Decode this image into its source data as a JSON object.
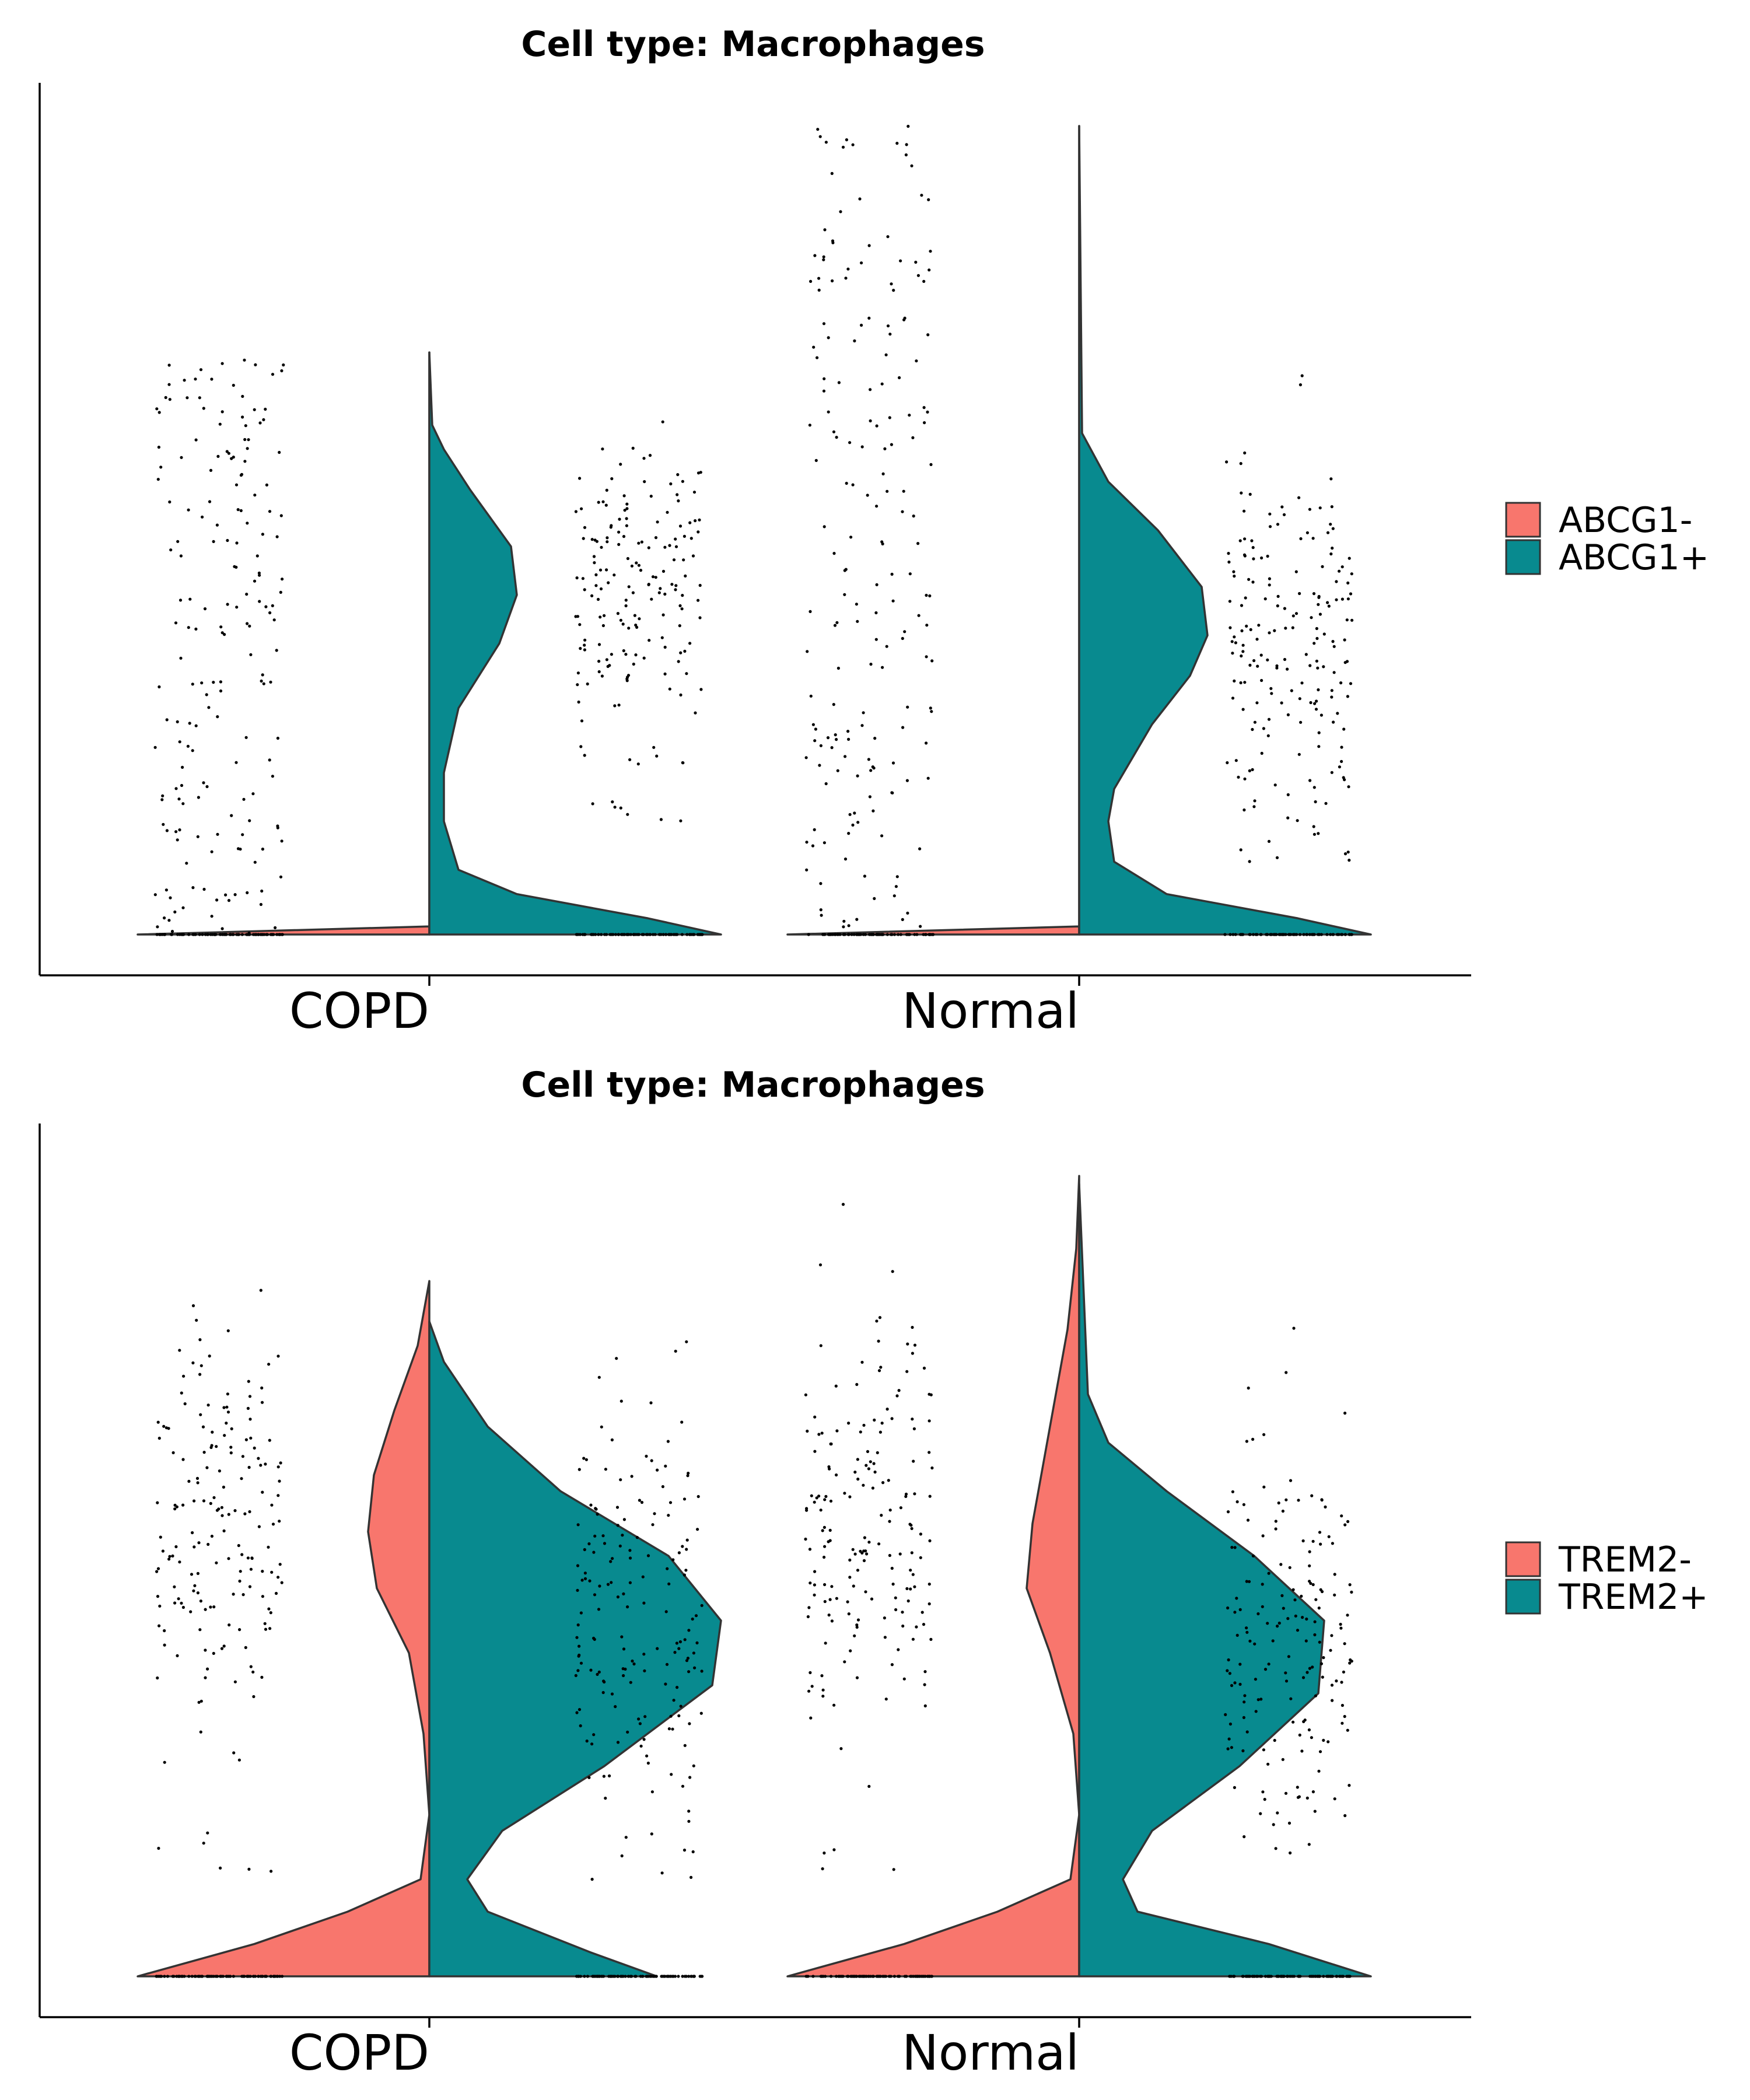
{
  "chart_data": [
    {
      "type": "violin",
      "title": "Cell type: Macrophages",
      "xlabel": "",
      "ylabel": "",
      "categories": [
        "COPD",
        "Normal"
      ],
      "legend": {
        "placement": "right",
        "entries": [
          {
            "label": "ABCG1-",
            "color": "#F8766D"
          },
          {
            "label": "ABCG1+",
            "color": "#088A8F"
          }
        ]
      },
      "ylim": [
        -0.05,
        1.05
      ],
      "grid": false,
      "series": [
        {
          "name": "ABCG1-",
          "color": "#F8766D",
          "groups": [
            {
              "category": "COPD",
              "ymax": 0.72,
              "density": [
                [
                  0,
                  1.0
                ],
                [
                  0.01,
                  0.0
                ]
              ],
              "points_visible_top": 0.73
            },
            {
              "category": "Normal",
              "ymax": 1.0,
              "density": [
                [
                  0,
                  1.0
                ],
                [
                  0.01,
                  0.0
                ]
              ],
              "points_visible_top": 1.0
            }
          ]
        },
        {
          "name": "ABCG1+",
          "color": "#088A8F",
          "groups": [
            {
              "category": "COPD",
              "ymax": 0.72,
              "density": [
                [
                  0,
                  1.0
                ],
                [
                  0.02,
                  0.75
                ],
                [
                  0.05,
                  0.3
                ],
                [
                  0.08,
                  0.1
                ],
                [
                  0.14,
                  0.05
                ],
                [
                  0.2,
                  0.05
                ],
                [
                  0.28,
                  0.1
                ],
                [
                  0.36,
                  0.24
                ],
                [
                  0.42,
                  0.3
                ],
                [
                  0.48,
                  0.28
                ],
                [
                  0.55,
                  0.14
                ],
                [
                  0.6,
                  0.05
                ],
                [
                  0.63,
                  0.01
                ],
                [
                  0.72,
                  0.0
                ]
              ]
            },
            {
              "category": "Normal",
              "ymax": 1.0,
              "density": [
                [
                  0,
                  1.0
                ],
                [
                  0.02,
                  0.75
                ],
                [
                  0.05,
                  0.3
                ],
                [
                  0.09,
                  0.12
                ],
                [
                  0.14,
                  0.1
                ],
                [
                  0.18,
                  0.12
                ],
                [
                  0.26,
                  0.25
                ],
                [
                  0.32,
                  0.38
                ],
                [
                  0.37,
                  0.44
                ],
                [
                  0.43,
                  0.42
                ],
                [
                  0.5,
                  0.27
                ],
                [
                  0.56,
                  0.1
                ],
                [
                  0.62,
                  0.01
                ],
                [
                  1.0,
                  0.0
                ]
              ]
            }
          ]
        }
      ]
    },
    {
      "type": "violin",
      "title": "Cell type: Macrophages",
      "xlabel": "",
      "ylabel": "",
      "categories": [
        "COPD",
        "Normal"
      ],
      "legend": {
        "placement": "right",
        "entries": [
          {
            "label": "TREM2-",
            "color": "#F8766D"
          },
          {
            "label": "TREM2+",
            "color": "#088A8F"
          }
        ]
      },
      "ylim": [
        -0.05,
        1.05
      ],
      "grid": false,
      "series": [
        {
          "name": "TREM2-",
          "color": "#F8766D",
          "groups": [
            {
              "category": "COPD",
              "ymax": 0.86,
              "density": [
                [
                  0,
                  1.0
                ],
                [
                  0.04,
                  0.6
                ],
                [
                  0.08,
                  0.28
                ],
                [
                  0.12,
                  0.03
                ],
                [
                  0.2,
                  0.0
                ],
                [
                  0.3,
                  0.02
                ],
                [
                  0.4,
                  0.07
                ],
                [
                  0.48,
                  0.18
                ],
                [
                  0.55,
                  0.21
                ],
                [
                  0.62,
                  0.19
                ],
                [
                  0.7,
                  0.12
                ],
                [
                  0.78,
                  0.04
                ],
                [
                  0.86,
                  0.0
                ]
              ]
            },
            {
              "category": "Normal",
              "ymax": 0.99,
              "density": [
                [
                  0,
                  1.0
                ],
                [
                  0.04,
                  0.6
                ],
                [
                  0.08,
                  0.28
                ],
                [
                  0.12,
                  0.03
                ],
                [
                  0.2,
                  0.0
                ],
                [
                  0.3,
                  0.02
                ],
                [
                  0.4,
                  0.1
                ],
                [
                  0.48,
                  0.18
                ],
                [
                  0.56,
                  0.16
                ],
                [
                  0.64,
                  0.12
                ],
                [
                  0.72,
                  0.08
                ],
                [
                  0.8,
                  0.04
                ],
                [
                  0.9,
                  0.01
                ],
                [
                  0.99,
                  0.0
                ]
              ]
            }
          ]
        },
        {
          "name": "TREM2+",
          "color": "#088A8F",
          "groups": [
            {
              "category": "COPD",
              "ymax": 0.81,
              "density": [
                [
                  0,
                  0.78
                ],
                [
                  0.03,
                  0.55
                ],
                [
                  0.08,
                  0.2
                ],
                [
                  0.12,
                  0.13
                ],
                [
                  0.18,
                  0.25
                ],
                [
                  0.26,
                  0.6
                ],
                [
                  0.36,
                  0.97
                ],
                [
                  0.44,
                  1.0
                ],
                [
                  0.52,
                  0.82
                ],
                [
                  0.6,
                  0.45
                ],
                [
                  0.68,
                  0.2
                ],
                [
                  0.76,
                  0.05
                ],
                [
                  0.81,
                  0.0
                ]
              ]
            },
            {
              "category": "Normal",
              "ymax": 0.98,
              "density": [
                [
                  0,
                  1.0
                ],
                [
                  0.04,
                  0.65
                ],
                [
                  0.08,
                  0.2
                ],
                [
                  0.12,
                  0.15
                ],
                [
                  0.18,
                  0.25
                ],
                [
                  0.26,
                  0.55
                ],
                [
                  0.35,
                  0.82
                ],
                [
                  0.44,
                  0.84
                ],
                [
                  0.52,
                  0.6
                ],
                [
                  0.6,
                  0.3
                ],
                [
                  0.66,
                  0.1
                ],
                [
                  0.72,
                  0.03
                ],
                [
                  0.98,
                  0.0
                ]
              ]
            }
          ]
        }
      ]
    }
  ]
}
